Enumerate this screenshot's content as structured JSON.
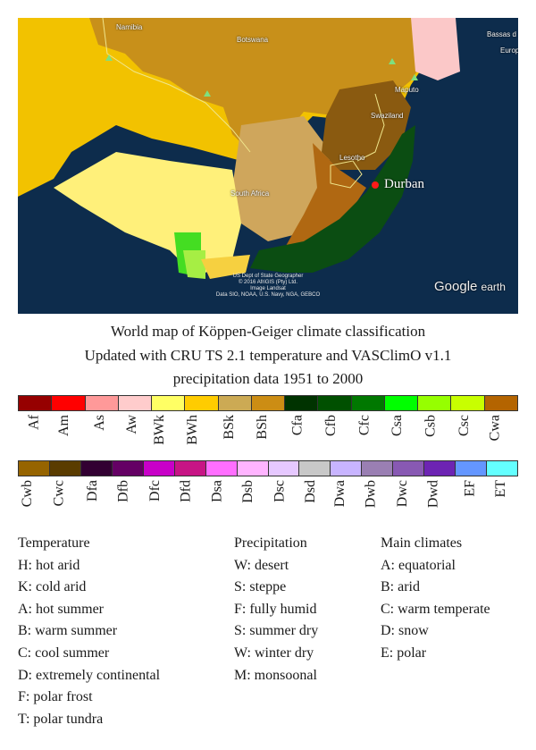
{
  "map": {
    "places": [
      {
        "id": "namibia",
        "label": "Namibia"
      },
      {
        "id": "botswana",
        "label": "Botswana"
      },
      {
        "id": "maputo",
        "label": "Maputo"
      },
      {
        "id": "swaziland",
        "label": "Swaziland"
      },
      {
        "id": "lesotho",
        "label": "Lesotho"
      },
      {
        "id": "south-africa",
        "label": "South Africa"
      },
      {
        "id": "bassas",
        "label": "Bassas d"
      },
      {
        "id": "europa",
        "label": "Europ"
      }
    ],
    "marker": {
      "label": "Durban",
      "color": "#ff1a1a"
    },
    "attribution": [
      "US Dept of State Geographer",
      "© 2016 AfriGIS (Pty) Ltd.",
      "Image Landsat",
      "Data SIO, NOAA, U.S. Navy, NGA, GEBCO"
    ],
    "brand": {
      "name": "Google",
      "suffix": "earth"
    }
  },
  "title": {
    "line1": "World map of Köppen-Geiger climate classification",
    "line2": "Updated with CRU TS 2.1 temperature and VASClimO v1.1",
    "line3": "precipitation data 1951 to 2000"
  },
  "legend": {
    "row1": [
      {
        "code": "Af",
        "color": "#960000"
      },
      {
        "code": "Am",
        "color": "#ff0000"
      },
      {
        "code": "As",
        "color": "#ff9999"
      },
      {
        "code": "Aw",
        "color": "#ffcccc"
      },
      {
        "code": "BWk",
        "color": "#ffff64"
      },
      {
        "code": "BWh",
        "color": "#ffcc00"
      },
      {
        "code": "BSk",
        "color": "#ccaa54"
      },
      {
        "code": "BSh",
        "color": "#cc8d14"
      },
      {
        "code": "Cfa",
        "color": "#003300"
      },
      {
        "code": "Cfb",
        "color": "#005000"
      },
      {
        "code": "Cfc",
        "color": "#007800"
      },
      {
        "code": "Csa",
        "color": "#00ff00"
      },
      {
        "code": "Csb",
        "color": "#96ff00"
      },
      {
        "code": "Csc",
        "color": "#c8ff00"
      },
      {
        "code": "Cwa",
        "color": "#b46400"
      }
    ],
    "row2": [
      {
        "code": "Cwb",
        "color": "#966400"
      },
      {
        "code": "Cwc",
        "color": "#5a3c00"
      },
      {
        "code": "Dfa",
        "color": "#320032"
      },
      {
        "code": "Dfb",
        "color": "#640064"
      },
      {
        "code": "Dfc",
        "color": "#c800c8"
      },
      {
        "code": "Dfd",
        "color": "#c71585"
      },
      {
        "code": "Dsa",
        "color": "#ff6eff"
      },
      {
        "code": "Dsb",
        "color": "#ffb4ff"
      },
      {
        "code": "Dsc",
        "color": "#e6c8ff"
      },
      {
        "code": "Dsd",
        "color": "#c8c8c8"
      },
      {
        "code": "Dwa",
        "color": "#c8b4ff"
      },
      {
        "code": "Dwb",
        "color": "#9a7fb3"
      },
      {
        "code": "Dwc",
        "color": "#8859b3"
      },
      {
        "code": "Dwd",
        "color": "#6d24b3"
      },
      {
        "code": "EF",
        "color": "#6496ff"
      },
      {
        "code": "ET",
        "color": "#64ffff"
      }
    ]
  },
  "key": {
    "temperature": {
      "heading": "Temperature",
      "items": [
        "H: hot arid",
        "K: cold arid",
        "A: hot summer",
        "B: warm summer",
        "C: cool summer",
        "D: extremely continental",
        "F: polar frost",
        "T: polar tundra"
      ]
    },
    "precipitation": {
      "heading": "Precipitation",
      "items": [
        "W: desert",
        "S: steppe",
        "F: fully humid",
        "S: summer dry",
        "W: winter dry",
        "M: monsoonal"
      ]
    },
    "main": {
      "heading": "Main climates",
      "items": [
        "A: equatorial",
        "B: arid",
        "C: warm temperate",
        "D: snow",
        "E: polar"
      ]
    }
  }
}
